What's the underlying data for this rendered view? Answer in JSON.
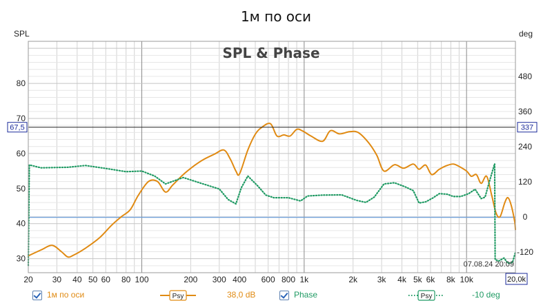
{
  "chart_data": {
    "type": "line",
    "title": "1м по оси",
    "subtitle": "SPL & Phase",
    "ylabel": "SPL",
    "y2label": "deg",
    "xscale": "log",
    "xlim": [
      20,
      20000
    ],
    "ylim": [
      26,
      92
    ],
    "y2lim": [
      -190,
      600
    ],
    "x_ticks": [
      {
        "v": 20,
        "l": "20"
      },
      {
        "v": 30,
        "l": "30"
      },
      {
        "v": 40,
        "l": "40"
      },
      {
        "v": 50,
        "l": "50"
      },
      {
        "v": 60,
        "l": "60"
      },
      {
        "v": 80,
        "l": "80"
      },
      {
        "v": 100,
        "l": "100"
      },
      {
        "v": 200,
        "l": "200"
      },
      {
        "v": 300,
        "l": "300"
      },
      {
        "v": 400,
        "l": "400"
      },
      {
        "v": 600,
        "l": "600"
      },
      {
        "v": 800,
        "l": "800"
      },
      {
        "v": 1000,
        "l": "1k"
      },
      {
        "v": 2000,
        "l": "2k"
      },
      {
        "v": 3000,
        "l": "3k"
      },
      {
        "v": 4000,
        "l": "4k"
      },
      {
        "v": 5000,
        "l": "5k"
      },
      {
        "v": 6000,
        "l": "6k"
      },
      {
        "v": 8000,
        "l": "8k"
      },
      {
        "v": 10000,
        "l": "10k"
      }
    ],
    "x_end_label": "20,0k",
    "y_ticks": [
      30,
      40,
      50,
      60,
      70,
      80
    ],
    "y2_ticks": [
      -120,
      0,
      120,
      240,
      360,
      480
    ],
    "cursor": {
      "spl_label": "67,5",
      "spl_value": 67.5,
      "phase_label": "337"
    },
    "reference_line": {
      "spl": 41.8
    },
    "timestamp": "07.08.24 20:09",
    "series": [
      {
        "name": "1м по оси",
        "axis": "left",
        "color": "#e08a12",
        "style": "solid",
        "points": [
          [
            20,
            30.8
          ],
          [
            24,
            32.5
          ],
          [
            28,
            33.8
          ],
          [
            32,
            32
          ],
          [
            35,
            30.5
          ],
          [
            38,
            31
          ],
          [
            45,
            33
          ],
          [
            55,
            36
          ],
          [
            65,
            39.5
          ],
          [
            75,
            42
          ],
          [
            85,
            44
          ],
          [
            95,
            48
          ],
          [
            110,
            52
          ],
          [
            125,
            52
          ],
          [
            140,
            49
          ],
          [
            155,
            51
          ],
          [
            180,
            54
          ],
          [
            210,
            56.5
          ],
          [
            240,
            58.3
          ],
          [
            280,
            59.8
          ],
          [
            320,
            61
          ],
          [
            350,
            58.5
          ],
          [
            380,
            55
          ],
          [
            400,
            54.2
          ],
          [
            450,
            61
          ],
          [
            500,
            65.5
          ],
          [
            550,
            67.5
          ],
          [
            620,
            68.5
          ],
          [
            680,
            65
          ],
          [
            750,
            65.3
          ],
          [
            820,
            65
          ],
          [
            900,
            66.9
          ],
          [
            980,
            66.4
          ],
          [
            1100,
            65
          ],
          [
            1300,
            63.5
          ],
          [
            1450,
            66.5
          ],
          [
            1650,
            65.6
          ],
          [
            1900,
            66.2
          ],
          [
            2150,
            66
          ],
          [
            2500,
            63
          ],
          [
            2800,
            59.5
          ],
          [
            3100,
            55
          ],
          [
            3600,
            56.8
          ],
          [
            4100,
            55.8
          ],
          [
            4700,
            57
          ],
          [
            5100,
            55.5
          ],
          [
            5600,
            56.7
          ],
          [
            6100,
            54
          ],
          [
            6800,
            55.5
          ],
          [
            7500,
            56.5
          ],
          [
            8300,
            57
          ],
          [
            9000,
            56.3
          ],
          [
            10000,
            55
          ],
          [
            10700,
            53.5
          ],
          [
            11500,
            54
          ],
          [
            12300,
            51.5
          ],
          [
            13300,
            53.5
          ],
          [
            14300,
            48
          ],
          [
            15200,
            43
          ],
          [
            16100,
            42
          ],
          [
            17200,
            46
          ],
          [
            18000,
            47.4
          ],
          [
            18900,
            45
          ],
          [
            19800,
            40.5
          ],
          [
            20000,
            38.3
          ]
        ]
      },
      {
        "name": "Phase",
        "axis": "right",
        "color": "#1f9a63",
        "style": "dotted",
        "points": [
          [
            20,
            -165
          ],
          [
            20.3,
            178
          ],
          [
            24,
            168
          ],
          [
            35,
            170
          ],
          [
            45,
            176
          ],
          [
            60,
            166
          ],
          [
            80,
            155
          ],
          [
            100,
            157
          ],
          [
            120,
            140
          ],
          [
            140,
            113
          ],
          [
            180,
            135
          ],
          [
            230,
            116
          ],
          [
            300,
            96
          ],
          [
            340,
            60
          ],
          [
            380,
            45
          ],
          [
            410,
            100
          ],
          [
            450,
            140
          ],
          [
            520,
            105
          ],
          [
            580,
            75
          ],
          [
            650,
            66
          ],
          [
            800,
            66
          ],
          [
            950,
            55
          ],
          [
            1050,
            72
          ],
          [
            1300,
            75
          ],
          [
            1700,
            76
          ],
          [
            2100,
            57
          ],
          [
            2400,
            50
          ],
          [
            2700,
            68
          ],
          [
            3100,
            113
          ],
          [
            3600,
            117
          ],
          [
            4200,
            103
          ],
          [
            4700,
            90
          ],
          [
            5100,
            48
          ],
          [
            5600,
            52
          ],
          [
            6200,
            65
          ],
          [
            6800,
            80
          ],
          [
            7600,
            78
          ],
          [
            8300,
            70
          ],
          [
            9200,
            70
          ],
          [
            10300,
            80
          ],
          [
            11300,
            95
          ],
          [
            12300,
            63
          ],
          [
            13000,
            68
          ],
          [
            13800,
            120
          ],
          [
            14500,
            160
          ],
          [
            14900,
            182
          ],
          [
            15000,
            -145
          ],
          [
            15800,
            -150
          ],
          [
            17000,
            -140
          ],
          [
            18000,
            -158
          ],
          [
            19200,
            -155
          ],
          [
            20000,
            -120
          ]
        ]
      }
    ],
    "legend": [
      {
        "label": "1м по оси",
        "checked": true,
        "symbol": "Psy",
        "value": "38,0 dB",
        "color": "#e08a12"
      },
      {
        "label": "Phase",
        "checked": true,
        "symbol": "Psy",
        "value": "-10 deg",
        "color": "#1f9a63"
      }
    ]
  }
}
